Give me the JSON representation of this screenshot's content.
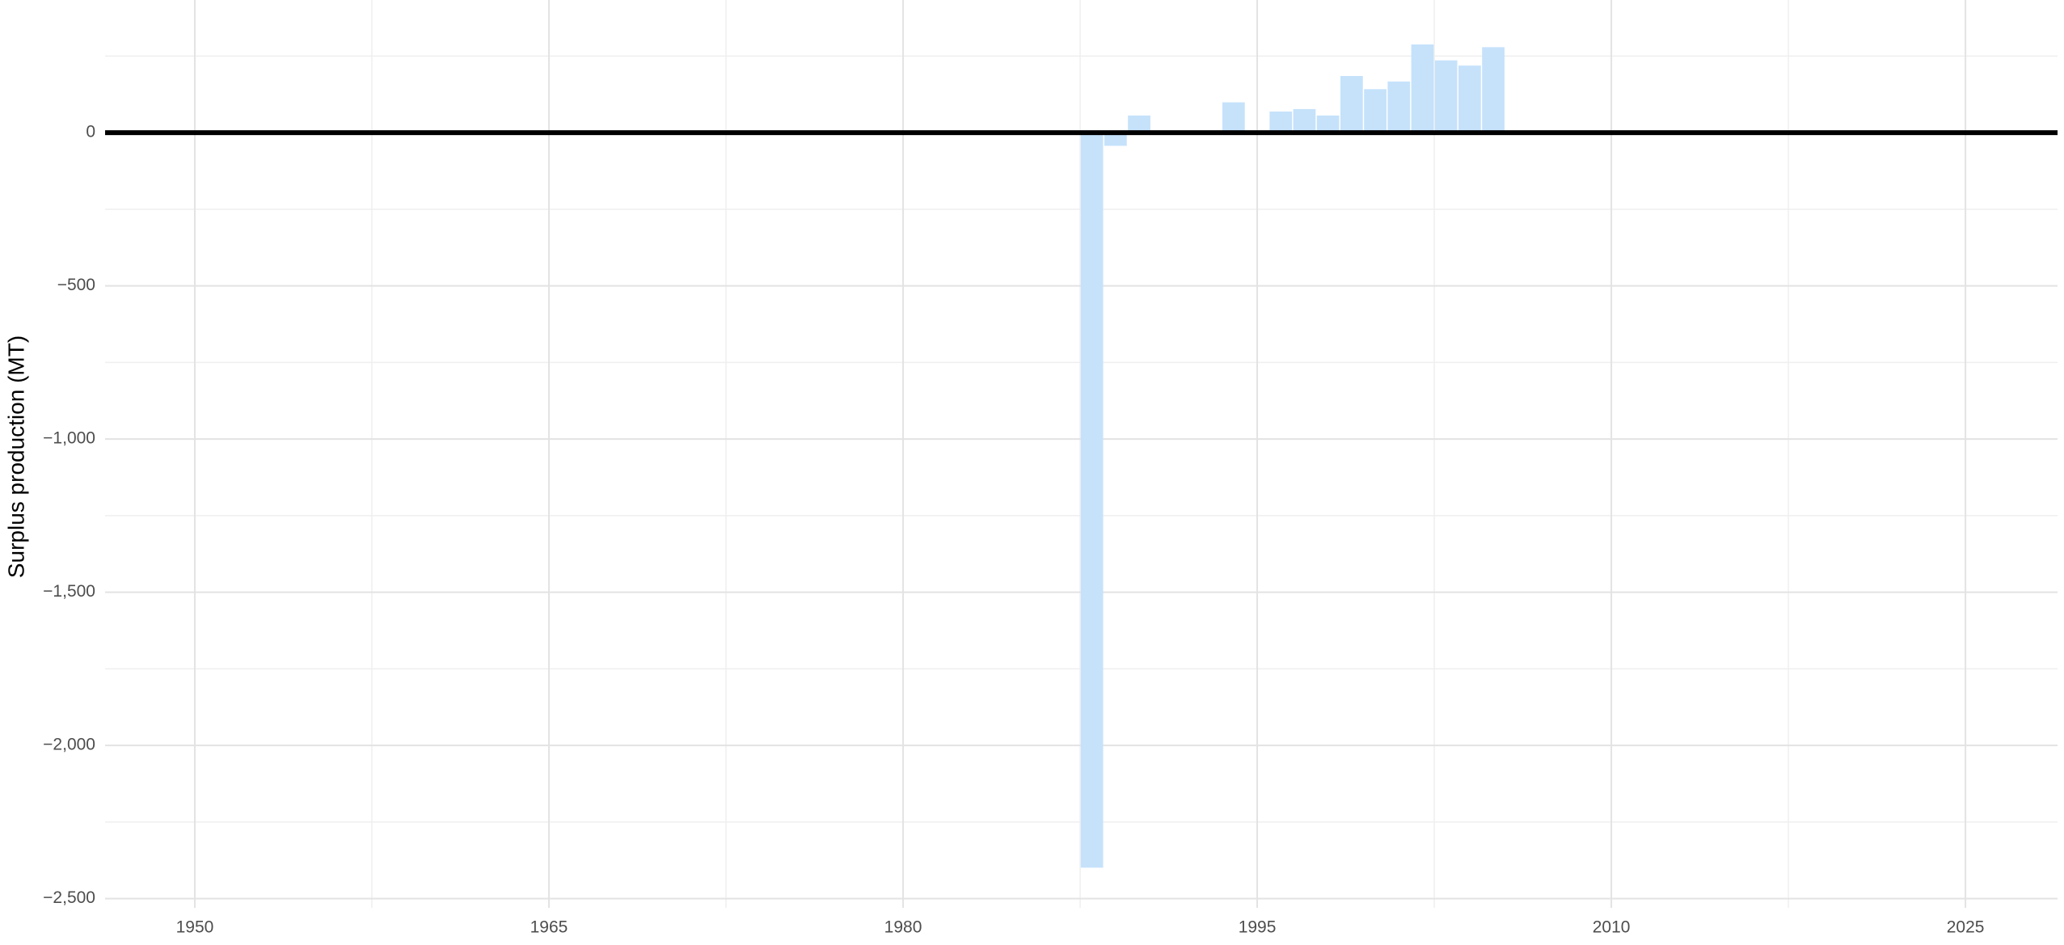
{
  "chart_data": {
    "type": "bar",
    "y_label": "Surplus production (MT)",
    "x": [
      1988,
      1989,
      1990,
      1994,
      1996,
      1997,
      1998,
      1999,
      2000,
      2001,
      2002,
      2003,
      2004,
      2005
    ],
    "values": [
      -2399,
      -43,
      56,
      99,
      69,
      77,
      56,
      185,
      142,
      167,
      288,
      236,
      219,
      279
    ],
    "color": "#c6e2fb",
    "bar_width": 0.95,
    "xlim": [
      1946.2,
      2028.9
    ],
    "xticks": [
      1950,
      1965,
      1980,
      1995,
      2010,
      2025
    ],
    "x_minor_ticks": [
      1957.5,
      1972.5,
      1987.5,
      2002.5,
      2017.5
    ],
    "ylim": [
      -2530,
      433
    ],
    "yticks": [
      {
        "value": -2500,
        "label": "−2,500"
      },
      {
        "value": -2000,
        "label": "−2,000"
      },
      {
        "value": -1500,
        "label": "−1,500"
      },
      {
        "value": -1000,
        "label": "−1,000"
      },
      {
        "value": -500,
        "label": "−500"
      },
      0
    ],
    "y_minor_ticks": [
      -2250,
      -1750,
      -1250,
      -750,
      -250,
      250
    ],
    "reference_line": 0,
    "grid": true
  }
}
